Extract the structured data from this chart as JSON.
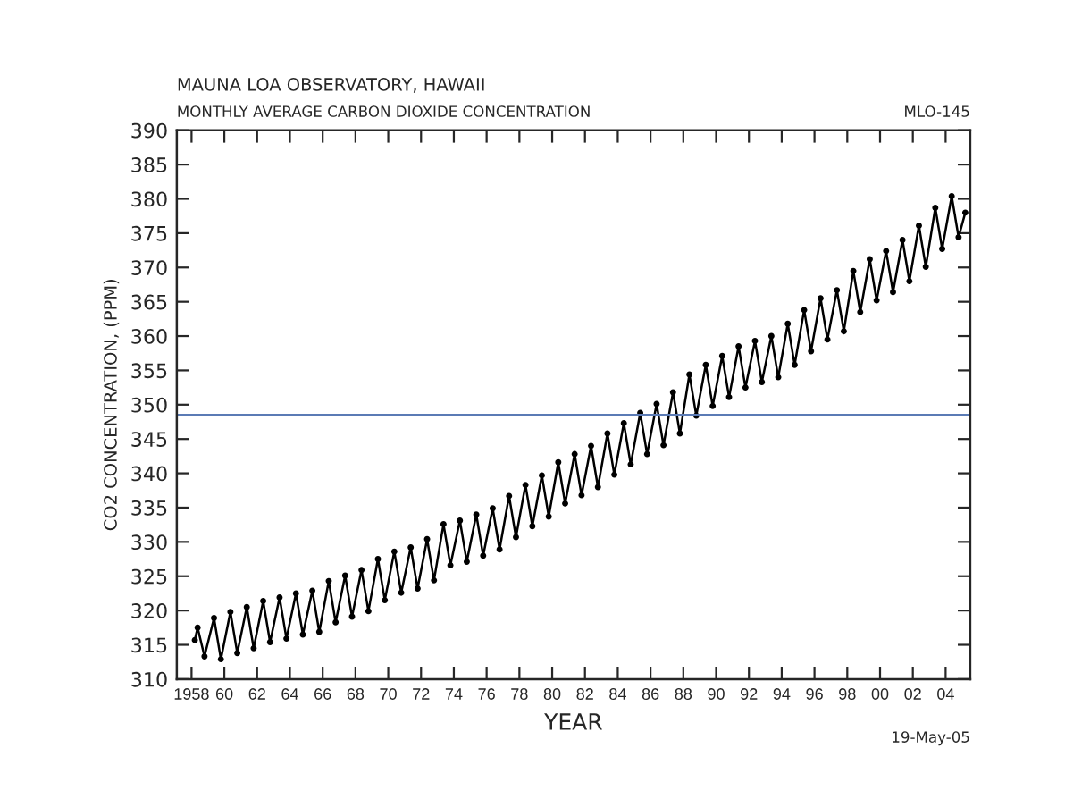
{
  "chart_data": {
    "type": "line",
    "title": "MAUNA LOA OBSERVATORY, HAWAII",
    "subtitle": "MONTHLY AVERAGE CARBON DIOXIDE CONCENTRATION",
    "xlabel": "YEAR",
    "ylabel": "CO2 CONCENTRATION, (PPM)",
    "annotations": [
      "MLO-145",
      "19-May-05"
    ],
    "series": [
      {
        "color": "#000000",
        "x": [
          1958.2,
          1958.37,
          1958.79,
          1959.37,
          1959.79,
          1960.37,
          1960.79,
          1961.37,
          1961.79,
          1962.37,
          1962.79,
          1963.37,
          1963.79,
          1964.37,
          1964.79,
          1965.37,
          1965.79,
          1966.37,
          1966.79,
          1967.37,
          1967.79,
          1968.37,
          1968.79,
          1969.37,
          1969.79,
          1970.37,
          1970.79,
          1971.37,
          1971.79,
          1972.37,
          1972.79,
          1973.37,
          1973.79,
          1974.37,
          1974.79,
          1975.37,
          1975.79,
          1976.37,
          1976.79,
          1977.37,
          1977.79,
          1978.37,
          1978.79,
          1979.37,
          1979.79,
          1980.37,
          1980.79,
          1981.37,
          1981.79,
          1982.37,
          1982.79,
          1983.37,
          1983.79,
          1984.37,
          1984.79,
          1985.37,
          1985.79,
          1986.37,
          1986.79,
          1987.37,
          1987.79,
          1988.37,
          1988.79,
          1989.37,
          1989.79,
          1990.37,
          1990.79,
          1991.37,
          1991.79,
          1992.37,
          1992.79,
          1993.37,
          1993.79,
          1994.37,
          1994.79,
          1995.37,
          1995.79,
          1996.37,
          1996.79,
          1997.37,
          1997.79,
          1998.37,
          1998.79,
          1999.37,
          1999.79,
          2000.37,
          2000.79,
          2001.37,
          2001.79,
          2002.37,
          2002.79,
          2003.37,
          2003.79,
          2004.37,
          2004.79,
          2005.2
        ],
        "values": [
          315.7,
          317.5,
          313.3,
          318.9,
          312.9,
          319.8,
          313.8,
          320.5,
          314.5,
          321.4,
          315.4,
          321.9,
          315.9,
          322.5,
          316.5,
          322.9,
          316.9,
          324.3,
          318.3,
          325.1,
          319.1,
          325.9,
          319.9,
          327.5,
          321.5,
          328.6,
          322.6,
          329.2,
          323.2,
          330.4,
          324.4,
          332.6,
          326.6,
          333.1,
          327.1,
          334.0,
          328.0,
          334.9,
          328.9,
          336.7,
          330.7,
          338.3,
          332.3,
          339.7,
          333.7,
          341.6,
          335.6,
          342.8,
          336.8,
          344.0,
          338.0,
          345.8,
          339.8,
          347.3,
          341.3,
          348.8,
          342.8,
          350.1,
          344.1,
          351.8,
          345.8,
          354.4,
          348.4,
          355.8,
          349.8,
          357.1,
          351.1,
          358.5,
          352.5,
          359.3,
          353.3,
          360.0,
          354.0,
          361.8,
          355.8,
          363.8,
          357.8,
          365.5,
          359.5,
          366.7,
          360.7,
          369.5,
          363.5,
          371.2,
          365.2,
          372.4,
          366.4,
          374.0,
          368.0,
          376.1,
          370.1,
          378.7,
          372.7,
          380.4,
          374.4,
          378.0
        ]
      }
    ],
    "marker": "circle",
    "line_style": "solid",
    "xlim": [
      1957.1,
      2005.5
    ],
    "xticks": [
      {
        "value": 1958,
        "label": "1958"
      },
      {
        "value": 1960,
        "label": "60"
      },
      {
        "value": 1962,
        "label": "62"
      },
      {
        "value": 1964,
        "label": "64"
      },
      {
        "value": 1966,
        "label": "66"
      },
      {
        "value": 1968,
        "label": "68"
      },
      {
        "value": 1970,
        "label": "70"
      },
      {
        "value": 1972,
        "label": "72"
      },
      {
        "value": 1974,
        "label": "74"
      },
      {
        "value": 1976,
        "label": "76"
      },
      {
        "value": 1978,
        "label": "78"
      },
      {
        "value": 1980,
        "label": "80"
      },
      {
        "value": 1982,
        "label": "82"
      },
      {
        "value": 1984,
        "label": "84"
      },
      {
        "value": 1986,
        "label": "86"
      },
      {
        "value": 1988,
        "label": "88"
      },
      {
        "value": 1990,
        "label": "90"
      },
      {
        "value": 1992,
        "label": "92"
      },
      {
        "value": 1994,
        "label": "94"
      },
      {
        "value": 1996,
        "label": "96"
      },
      {
        "value": 1998,
        "label": "98"
      },
      {
        "value": 2000,
        "label": "00"
      },
      {
        "value": 2002,
        "label": "02"
      },
      {
        "value": 2004,
        "label": "04"
      }
    ],
    "ylim": [
      310,
      390
    ],
    "yticks": [
      310,
      315,
      320,
      325,
      330,
      335,
      340,
      345,
      350,
      355,
      360,
      365,
      370,
      375,
      380,
      385,
      390
    ],
    "ref_lines": [
      {
        "axis": "y",
        "value": 348.5,
        "color": "#5b7bb5",
        "line_style": "solid"
      }
    ],
    "grid": false,
    "legend": false
  }
}
